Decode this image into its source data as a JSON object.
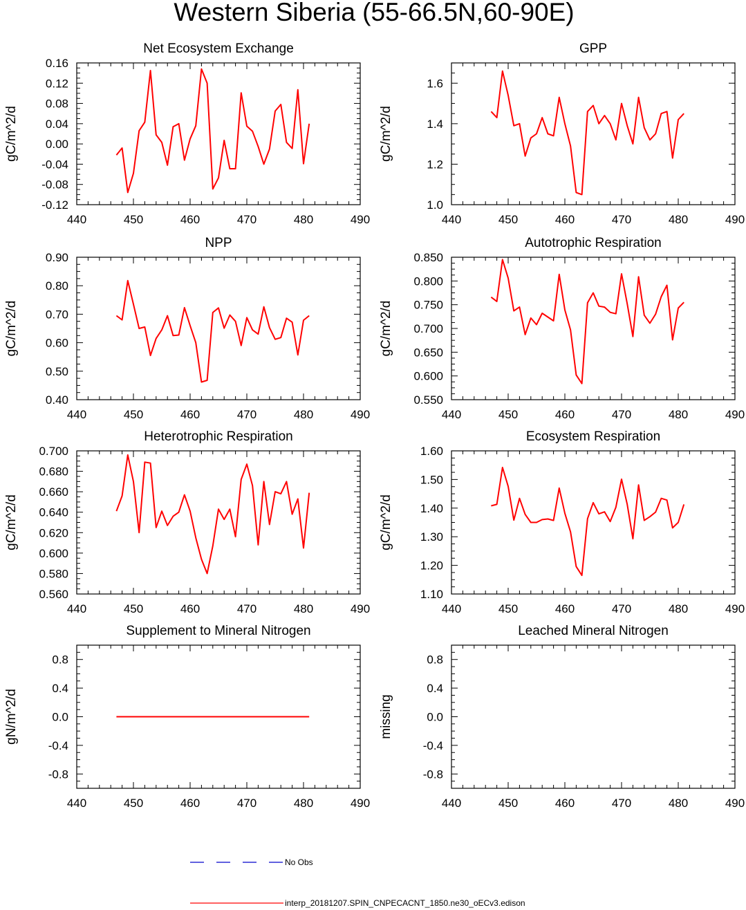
{
  "figure": {
    "title": "Western Siberia (55-66.5N,60-90E)",
    "colors": {
      "model": "#ff0000",
      "obs": "#0000cc",
      "axis": "#000000"
    }
  },
  "legend": {
    "entries": [
      {
        "label": "No Obs",
        "style": "dashed",
        "color": "#0000cc"
      },
      {
        "label": "interp_20181207.SPIN_CNPECACNT_1850.ne30_oECv3.edison",
        "style": "solid",
        "color": "#ff0000"
      }
    ]
  },
  "chart_data": [
    {
      "type": "line",
      "title": "Net Ecosystem Exchange",
      "ylabel": "gC/m^2/d",
      "xlim": [
        440,
        490
      ],
      "xticks": [
        "440",
        "450",
        "460",
        "470",
        "480",
        "490"
      ],
      "ylim": [
        -0.12,
        0.16
      ],
      "yticks": [
        "-0.12",
        "-0.08",
        "-0.04",
        "0.00",
        "0.04",
        "0.08",
        "0.12",
        "0.16"
      ],
      "x": [
        447,
        448,
        449,
        450,
        451,
        452,
        453,
        454,
        455,
        456,
        457,
        458,
        459,
        460,
        461,
        462,
        463,
        464,
        465,
        466,
        467,
        468,
        469,
        470,
        471,
        472,
        473,
        474,
        475,
        476,
        477,
        478,
        479,
        480,
        481
      ],
      "series": [
        {
          "name": "interp_20181207.SPIN_CNPECACNT_1850.ne30_oECv3.edison",
          "values": [
            -0.022,
            -0.008,
            -0.096,
            -0.058,
            0.026,
            0.043,
            0.145,
            0.018,
            0.003,
            -0.042,
            0.034,
            0.04,
            -0.032,
            0.01,
            0.036,
            0.148,
            0.12,
            -0.089,
            -0.067,
            0.007,
            -0.049,
            -0.049,
            0.101,
            0.035,
            0.025,
            -0.005,
            -0.04,
            -0.01,
            0.065,
            0.078,
            0.003,
            -0.009,
            0.107,
            -0.039,
            0.04
          ]
        }
      ]
    },
    {
      "type": "line",
      "title": "GPP",
      "ylabel": "gC/m^2/d",
      "xlim": [
        440,
        490
      ],
      "xticks": [
        "440",
        "450",
        "460",
        "470",
        "480",
        "490"
      ],
      "ylim": [
        1.0,
        1.7
      ],
      "yticks": [
        "1.0",
        "1.2",
        "1.4",
        "1.6"
      ],
      "x": [
        447,
        448,
        449,
        450,
        451,
        452,
        453,
        454,
        455,
        456,
        457,
        458,
        459,
        460,
        461,
        462,
        463,
        464,
        465,
        466,
        467,
        468,
        469,
        470,
        471,
        472,
        473,
        474,
        475,
        476,
        477,
        478,
        479,
        480,
        481
      ],
      "series": [
        {
          "name": "interp_20181207.SPIN_CNPECACNT_1850.ne30_oECv3.edison",
          "values": [
            1.46,
            1.43,
            1.66,
            1.54,
            1.39,
            1.4,
            1.24,
            1.33,
            1.35,
            1.43,
            1.35,
            1.34,
            1.53,
            1.4,
            1.29,
            1.06,
            1.05,
            1.46,
            1.49,
            1.4,
            1.44,
            1.4,
            1.32,
            1.5,
            1.39,
            1.3,
            1.53,
            1.38,
            1.32,
            1.35,
            1.45,
            1.46,
            1.23,
            1.42,
            1.45
          ]
        }
      ]
    },
    {
      "type": "line",
      "title": "NPP",
      "ylabel": "gC/m^2/d",
      "xlim": [
        440,
        490
      ],
      "xticks": [
        "440",
        "450",
        "460",
        "470",
        "480",
        "490"
      ],
      "ylim": [
        0.4,
        0.9
      ],
      "yticks": [
        "0.40",
        "0.50",
        "0.60",
        "0.70",
        "0.80",
        "0.90"
      ],
      "x": [
        447,
        448,
        449,
        450,
        451,
        452,
        453,
        454,
        455,
        456,
        457,
        458,
        459,
        460,
        461,
        462,
        463,
        464,
        465,
        466,
        467,
        468,
        469,
        470,
        471,
        472,
        473,
        474,
        475,
        476,
        477,
        478,
        479,
        480,
        481
      ],
      "series": [
        {
          "name": "interp_20181207.SPIN_CNPECACNT_1850.ne30_oECv3.edison",
          "values": [
            0.695,
            0.68,
            0.818,
            0.735,
            0.65,
            0.655,
            0.555,
            0.615,
            0.645,
            0.695,
            0.625,
            0.627,
            0.723,
            0.66,
            0.6,
            0.462,
            0.468,
            0.706,
            0.722,
            0.651,
            0.697,
            0.675,
            0.59,
            0.688,
            0.645,
            0.63,
            0.726,
            0.653,
            0.612,
            0.618,
            0.686,
            0.672,
            0.557,
            0.679,
            0.695
          ]
        }
      ]
    },
    {
      "type": "line",
      "title": "Autotrophic Respiration",
      "ylabel": "gC/m^2/d",
      "xlim": [
        440,
        490
      ],
      "xticks": [
        "440",
        "450",
        "460",
        "470",
        "480",
        "490"
      ],
      "ylim": [
        0.55,
        0.85
      ],
      "yticks": [
        "0.550",
        "0.600",
        "0.650",
        "0.700",
        "0.750",
        "0.800",
        "0.850"
      ],
      "x": [
        447,
        448,
        449,
        450,
        451,
        452,
        453,
        454,
        455,
        456,
        457,
        458,
        459,
        460,
        461,
        462,
        463,
        464,
        465,
        466,
        467,
        468,
        469,
        470,
        471,
        472,
        473,
        474,
        475,
        476,
        477,
        478,
        479,
        480,
        481
      ],
      "series": [
        {
          "name": "interp_20181207.SPIN_CNPECACNT_1850.ne30_oECv3.edison",
          "values": [
            0.766,
            0.757,
            0.845,
            0.806,
            0.737,
            0.745,
            0.687,
            0.722,
            0.708,
            0.732,
            0.724,
            0.716,
            0.814,
            0.739,
            0.697,
            0.602,
            0.584,
            0.754,
            0.775,
            0.747,
            0.745,
            0.734,
            0.731,
            0.815,
            0.752,
            0.683,
            0.809,
            0.728,
            0.711,
            0.73,
            0.767,
            0.791,
            0.676,
            0.743,
            0.755
          ]
        }
      ]
    },
    {
      "type": "line",
      "title": "Heterotrophic Respiration",
      "ylabel": "gC/m^2/d",
      "xlim": [
        440,
        490
      ],
      "xticks": [
        "440",
        "450",
        "460",
        "470",
        "480",
        "490"
      ],
      "ylim": [
        0.56,
        0.7
      ],
      "yticks": [
        "0.560",
        "0.580",
        "0.600",
        "0.620",
        "0.640",
        "0.660",
        "0.680",
        "0.700"
      ],
      "x": [
        447,
        448,
        449,
        450,
        451,
        452,
        453,
        454,
        455,
        456,
        457,
        458,
        459,
        460,
        461,
        462,
        463,
        464,
        465,
        466,
        467,
        468,
        469,
        470,
        471,
        472,
        473,
        474,
        475,
        476,
        477,
        478,
        479,
        480,
        481
      ],
      "series": [
        {
          "name": "interp_20181207.SPIN_CNPECACNT_1850.ne30_oECv3.edison",
          "values": [
            0.641,
            0.656,
            0.696,
            0.67,
            0.62,
            0.689,
            0.688,
            0.625,
            0.641,
            0.627,
            0.636,
            0.64,
            0.657,
            0.641,
            0.615,
            0.594,
            0.58,
            0.607,
            0.643,
            0.633,
            0.643,
            0.616,
            0.672,
            0.687,
            0.666,
            0.608,
            0.67,
            0.628,
            0.66,
            0.658,
            0.67,
            0.638,
            0.653,
            0.605,
            0.659
          ]
        }
      ]
    },
    {
      "type": "line",
      "title": "Ecosystem Respiration",
      "ylabel": "gC/m^2/d",
      "xlim": [
        440,
        490
      ],
      "xticks": [
        "440",
        "450",
        "460",
        "470",
        "480",
        "490"
      ],
      "ylim": [
        1.1,
        1.6
      ],
      "yticks": [
        "1.10",
        "1.20",
        "1.30",
        "1.40",
        "1.50",
        "1.60"
      ],
      "x": [
        447,
        448,
        449,
        450,
        451,
        452,
        453,
        454,
        455,
        456,
        457,
        458,
        459,
        460,
        461,
        462,
        463,
        464,
        465,
        466,
        467,
        468,
        469,
        470,
        471,
        472,
        473,
        474,
        475,
        476,
        477,
        478,
        479,
        480,
        481
      ],
      "series": [
        {
          "name": "interp_20181207.SPIN_CNPECACNT_1850.ne30_oECv3.edison",
          "values": [
            1.408,
            1.413,
            1.542,
            1.476,
            1.358,
            1.434,
            1.378,
            1.35,
            1.35,
            1.36,
            1.362,
            1.357,
            1.47,
            1.382,
            1.317,
            1.196,
            1.165,
            1.363,
            1.419,
            1.38,
            1.387,
            1.353,
            1.403,
            1.501,
            1.413,
            1.293,
            1.481,
            1.357,
            1.37,
            1.386,
            1.434,
            1.428,
            1.331,
            1.35,
            1.413
          ]
        }
      ]
    },
    {
      "type": "line",
      "title": "Supplement to Mineral Nitrogen",
      "ylabel": "gN/m^2/d",
      "xlim": [
        440,
        490
      ],
      "xticks": [
        "440",
        "450",
        "460",
        "470",
        "480",
        "490"
      ],
      "ylim": [
        -1.0,
        1.0
      ],
      "yticks": [
        "-0.8",
        "-0.4",
        "0.0",
        "0.4",
        "0.8"
      ],
      "ytickvals": [
        -0.8,
        -0.4,
        0.0,
        0.4,
        0.8
      ],
      "x": [
        447,
        481
      ],
      "series": [
        {
          "name": "interp_20181207.SPIN_CNPECACNT_1850.ne30_oECv3.edison",
          "values": [
            0.0,
            0.0
          ]
        }
      ]
    },
    {
      "type": "line",
      "title": "Leached Mineral Nitrogen",
      "ylabel": "missing",
      "xlim": [
        440,
        490
      ],
      "xticks": [
        "440",
        "450",
        "460",
        "470",
        "480",
        "490"
      ],
      "ylim": [
        -1.0,
        1.0
      ],
      "yticks": [
        "-0.8",
        "-0.4",
        "0.0",
        "0.4",
        "0.8"
      ],
      "ytickvals": [
        -0.8,
        -0.4,
        0.0,
        0.4,
        0.8
      ],
      "x": [],
      "series": []
    }
  ]
}
